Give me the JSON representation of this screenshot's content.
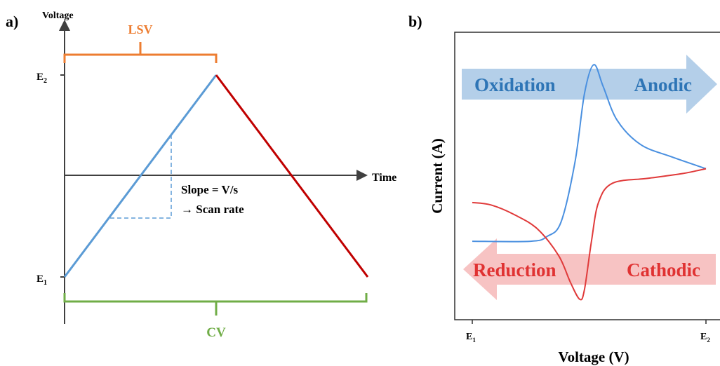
{
  "chart_data": [
    {
      "panel_label": "a)",
      "type": "line",
      "xlabel": "Time",
      "ylabel": "Voltage",
      "y_ticks": [
        {
          "main": "E",
          "sub": "1"
        },
        {
          "main": "E",
          "sub": "2"
        }
      ],
      "annotations": {
        "lsv": "LSV",
        "cv": "CV",
        "slope_line1": "Slope = V/s",
        "slope_line2": "→ Scan rate"
      },
      "series": [
        {
          "role": "forward-scan",
          "points": [
            [
              0,
              0
            ],
            [
              1,
              1
            ]
          ]
        },
        {
          "role": "reverse-scan",
          "points": [
            [
              1,
              1
            ],
            [
              2,
              0
            ]
          ]
        }
      ]
    },
    {
      "panel_label": "b)",
      "type": "line",
      "xlabel": "Voltage (V)",
      "ylabel": "Current (A)",
      "x_ticks": [
        {
          "main": "E",
          "sub": "1"
        },
        {
          "main": "E",
          "sub": "2"
        }
      ],
      "arrows": {
        "top_left": "Oxidation",
        "top_right": "Anodic",
        "bottom_left": "Reduction",
        "bottom_right": "Cathodic"
      },
      "series": [
        {
          "role": "oxidation-sweep",
          "color": "#4a90e0",
          "points": [
            [
              0,
              0.22
            ],
            [
              0.25,
              0.22
            ],
            [
              0.32,
              0.24
            ],
            [
              0.38,
              0.3
            ],
            [
              0.44,
              0.55
            ],
            [
              0.48,
              0.83
            ],
            [
              0.52,
              0.95
            ],
            [
              0.56,
              0.86
            ],
            [
              0.62,
              0.72
            ],
            [
              0.72,
              0.62
            ],
            [
              0.85,
              0.57
            ],
            [
              1,
              0.52
            ]
          ]
        },
        {
          "role": "reduction-sweep",
          "color": "#e03a3a",
          "points": [
            [
              1,
              0.52
            ],
            [
              0.9,
              0.5
            ],
            [
              0.75,
              0.48
            ],
            [
              0.6,
              0.46
            ],
            [
              0.54,
              0.38
            ],
            [
              0.51,
              0.22
            ],
            [
              0.48,
              0.02
            ],
            [
              0.46,
              -0.02
            ],
            [
              0.42,
              0.05
            ],
            [
              0.37,
              0.16
            ],
            [
              0.28,
              0.27
            ],
            [
              0.18,
              0.33
            ],
            [
              0.08,
              0.37
            ],
            [
              0,
              0.38
            ]
          ]
        }
      ]
    }
  ],
  "colors": {
    "forward": "#5b9bd5",
    "reverse": "#c00000",
    "lsv": "#ed7d31",
    "cv": "#70ad47",
    "ox_arrow": "#b4cfe9",
    "ox_text": "#2e75b6",
    "red_arrow": "#f7c3c3",
    "red_text": "#e03232"
  }
}
